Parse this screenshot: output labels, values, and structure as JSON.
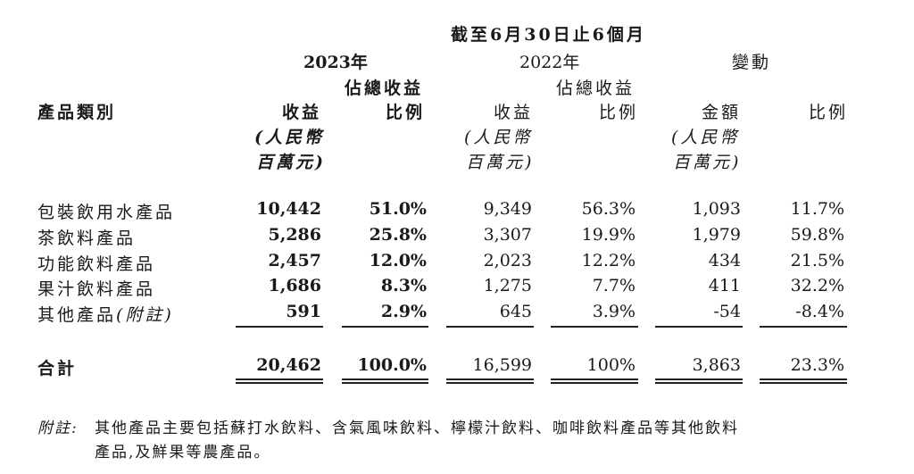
{
  "header": {
    "period": "截至6月30日止6個月",
    "year_2023": "2023年",
    "year_2022": "2022年",
    "change": "變動",
    "pct_total_2023_line1": "佔總收益",
    "pct_total_2023_line2": "比例",
    "pct_total_2022_line1": "佔總收益",
    "pct_total_2022_line2": "比例",
    "category": "產品類別",
    "revenue_2023": "收益",
    "revenue_2022": "收益",
    "amount": "金額",
    "ratio": "比例",
    "unit_line1": "(人民幣",
    "unit_line2": "百萬元)"
  },
  "rows": [
    {
      "category": "包裝飲用水產品",
      "rev2023": "10,442",
      "pct2023": "51.0%",
      "rev2022": "9,349",
      "pct2022": "56.3%",
      "amount": "1,093",
      "ratio": "11.7%"
    },
    {
      "category": "茶飲料產品",
      "rev2023": "5,286",
      "pct2023": "25.8%",
      "rev2022": "3,307",
      "pct2022": "19.9%",
      "amount": "1,979",
      "ratio": "59.8%"
    },
    {
      "category": "功能飲料產品",
      "rev2023": "2,457",
      "pct2023": "12.0%",
      "rev2022": "2,023",
      "pct2022": "12.2%",
      "amount": "434",
      "ratio": "21.5%"
    },
    {
      "category": "果汁飲料產品",
      "rev2023": "1,686",
      "pct2023": "8.3%",
      "rev2022": "1,275",
      "pct2022": "7.7%",
      "amount": "411",
      "ratio": "32.2%"
    },
    {
      "category": "其他產品",
      "category_note": "(附註)",
      "rev2023": "591",
      "pct2023": "2.9%",
      "rev2022": "645",
      "pct2022": "3.9%",
      "amount": "-54",
      "ratio": "-8.4%"
    }
  ],
  "total": {
    "category": "合計",
    "rev2023": "20,462",
    "pct2023": "100.0%",
    "rev2022": "16,599",
    "pct2022": "100%",
    "amount": "3,863",
    "ratio": "23.3%"
  },
  "footnote": {
    "label": "附註:",
    "line1": "其他產品主要包括蘇打水飲料、含氣風味飲料、檸檬汁飲料、咖啡飲料產品等其他飲料",
    "line2": "產品,及鮮果等農產品。"
  }
}
